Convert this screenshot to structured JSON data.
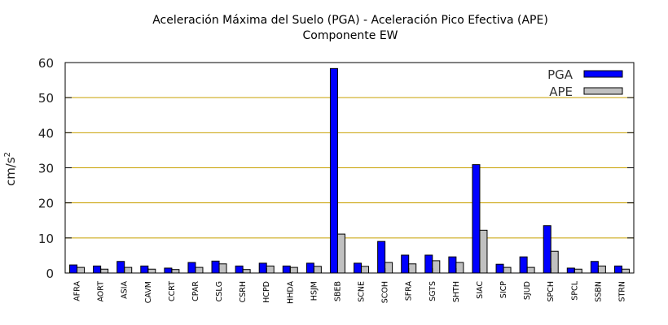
{
  "chart_data": {
    "type": "bar",
    "title": "Aceleración Máxima del Suelo (PGA) -  Aceleración Pico Efectiva (APE)",
    "subtitle": "Componente EW",
    "xlabel": "",
    "ylabel": "cm/s",
    "ylabel_superscript": "2",
    "ylim": [
      0,
      60
    ],
    "yticks": [
      0,
      10,
      20,
      30,
      40,
      50,
      60
    ],
    "grid": true,
    "grid_color": "#c8a000",
    "legend_position": "top-right",
    "categories": [
      "AFRA",
      "AORT",
      "ASIA",
      "CAVM",
      "CCRT",
      "CPAR",
      "CSLG",
      "CSRH",
      "HCPD",
      "HHDA",
      "HSJM",
      "SBEB",
      "SCNE",
      "SCOH",
      "SFRA",
      "SGTS",
      "SHTH",
      "SIAC",
      "SICP",
      "SJUD",
      "SPCH",
      "SPCL",
      "SSBN",
      "STRN"
    ],
    "series": [
      {
        "name": "PGA",
        "color": "#0000ff",
        "values": [
          2.3,
          2.0,
          3.3,
          2.0,
          1.4,
          3.0,
          3.4,
          2.0,
          2.8,
          2.0,
          2.8,
          58.3,
          2.8,
          9.0,
          5.1,
          5.1,
          4.6,
          30.9,
          2.5,
          4.6,
          13.5,
          1.4,
          3.3,
          2.0
        ]
      },
      {
        "name": "APE",
        "color": "#c0c0c0",
        "values": [
          1.6,
          1.1,
          1.6,
          1.1,
          1.0,
          1.6,
          2.6,
          1.0,
          2.0,
          1.6,
          1.9,
          11.1,
          1.9,
          3.0,
          2.6,
          3.5,
          3.0,
          12.2,
          1.6,
          1.6,
          6.2,
          1.1,
          2.0,
          1.1
        ]
      }
    ]
  }
}
